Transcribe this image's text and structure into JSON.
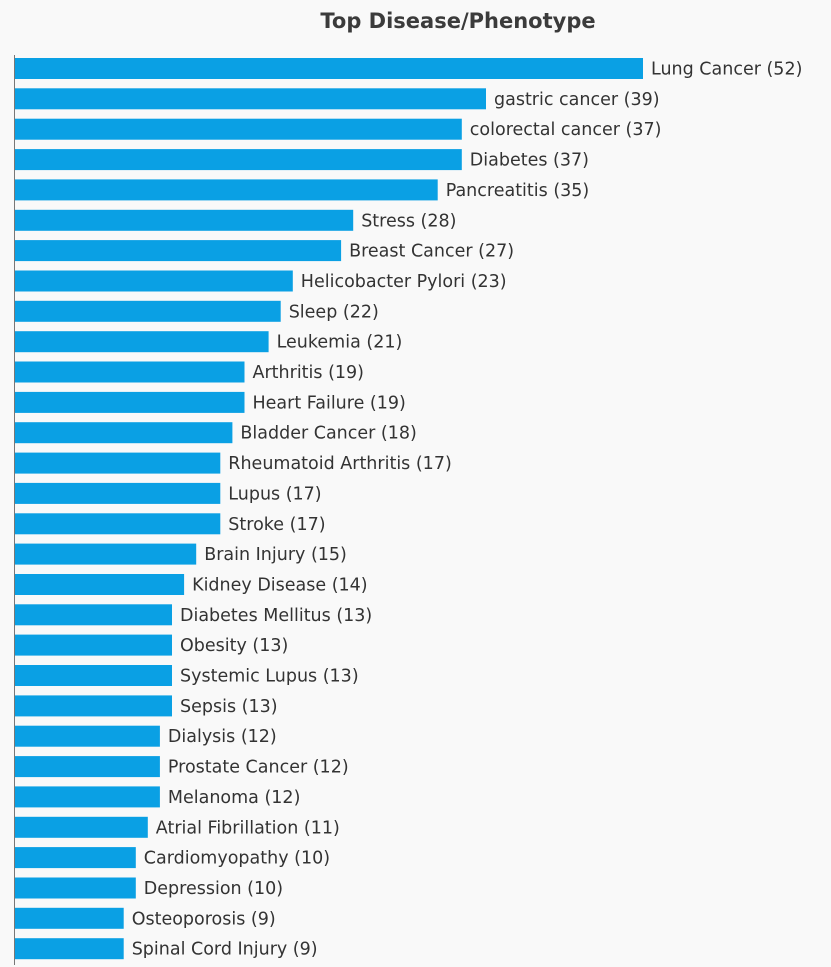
{
  "chart_data": {
    "type": "bar",
    "orientation": "horizontal",
    "title": "Top Disease/Phenotype",
    "xlabel": "",
    "ylabel": "",
    "xlim": [
      0,
      52
    ],
    "grid": false,
    "legend": "none",
    "bar_color": "#0aa0e4",
    "categories": [
      "Lung Cancer",
      "gastric cancer",
      "colorectal cancer",
      "Diabetes",
      "Pancreatitis",
      "Stress",
      "Breast Cancer",
      "Helicobacter Pylori",
      "Sleep",
      "Leukemia",
      "Arthritis",
      "Heart Failure",
      "Bladder Cancer",
      "Rheumatoid Arthritis",
      "Lupus",
      "Stroke",
      "Brain Injury",
      "Kidney Disease",
      "Diabetes Mellitus",
      "Obesity",
      "Systemic Lupus",
      "Sepsis",
      "Dialysis",
      "Prostate Cancer",
      "Melanoma",
      "Atrial Fibrillation",
      "Cardiomyopathy",
      "Depression",
      "Osteoporosis",
      "Spinal Cord Injury"
    ],
    "values": [
      52,
      39,
      37,
      37,
      35,
      28,
      27,
      23,
      22,
      21,
      19,
      19,
      18,
      17,
      17,
      17,
      15,
      14,
      13,
      13,
      13,
      13,
      12,
      12,
      12,
      11,
      10,
      10,
      9,
      9
    ],
    "data_labels": [
      "Lung Cancer (52)",
      "gastric cancer (39)",
      "colorectal cancer (37)",
      "Diabetes (37)",
      "Pancreatitis (35)",
      "Stress (28)",
      "Breast Cancer (27)",
      "Helicobacter Pylori (23)",
      "Sleep (22)",
      "Leukemia (21)",
      "Arthritis (19)",
      "Heart Failure (19)",
      "Bladder Cancer (18)",
      "Rheumatoid Arthritis (17)",
      "Lupus (17)",
      "Stroke (17)",
      "Brain Injury (15)",
      "Kidney Disease (14)",
      "Diabetes Mellitus (13)",
      "Obesity (13)",
      "Systemic Lupus (13)",
      "Sepsis (13)",
      "Dialysis (12)",
      "Prostate Cancer (12)",
      "Melanoma (12)",
      "Atrial Fibrillation (11)",
      "Cardiomyopathy (10)",
      "Depression (10)",
      "Osteoporosis (9)",
      "Spinal Cord Injury (9)"
    ]
  }
}
